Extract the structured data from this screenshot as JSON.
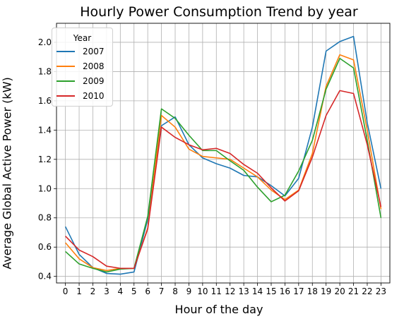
{
  "chart_data": {
    "type": "line",
    "title": "Hourly Power Consumption Trend by year",
    "xlabel": "Hour of the day",
    "ylabel": "Average Global Active Power  (kW)",
    "x": [
      0,
      1,
      2,
      3,
      4,
      5,
      6,
      7,
      8,
      9,
      10,
      11,
      12,
      13,
      14,
      15,
      16,
      17,
      18,
      19,
      20,
      21,
      22,
      23
    ],
    "xticks": [
      "0",
      "1",
      "2",
      "3",
      "4",
      "5",
      "6",
      "7",
      "8",
      "9",
      "10",
      "11",
      "12",
      "13",
      "14",
      "15",
      "16",
      "17",
      "18",
      "19",
      "20",
      "21",
      "22",
      "23"
    ],
    "yticks": [
      "0.4",
      "0.6",
      "0.8",
      "1.0",
      "1.2",
      "1.4",
      "1.6",
      "1.8",
      "2.0"
    ],
    "ytick_values": [
      0.4,
      0.6,
      0.8,
      1.0,
      1.2,
      1.4,
      1.6,
      1.8,
      2.0
    ],
    "xlim": [
      -0.65,
      23.65
    ],
    "ylim": [
      0.355,
      2.13
    ],
    "grid": true,
    "legend": {
      "title": "Year",
      "position": "top-left"
    },
    "series": [
      {
        "name": "2007",
        "color": "#1f77b4",
        "values": [
          0.74,
          0.55,
          0.46,
          0.42,
          0.415,
          0.43,
          0.79,
          1.43,
          1.49,
          1.3,
          1.21,
          1.17,
          1.14,
          1.09,
          1.08,
          1.02,
          0.95,
          1.07,
          1.42,
          1.94,
          2.005,
          2.04,
          1.45,
          1.0
        ]
      },
      {
        "name": "2008",
        "color": "#ff7f0e",
        "values": [
          0.63,
          0.52,
          0.46,
          0.44,
          0.455,
          0.455,
          0.73,
          1.5,
          1.42,
          1.27,
          1.22,
          1.21,
          1.2,
          1.14,
          1.08,
          0.99,
          0.925,
          0.99,
          1.24,
          1.7,
          1.915,
          1.88,
          1.4,
          0.86
        ]
      },
      {
        "name": "2009",
        "color": "#2ca02c",
        "values": [
          0.57,
          0.485,
          0.455,
          0.43,
          0.45,
          0.455,
          0.81,
          1.545,
          1.48,
          1.365,
          1.26,
          1.26,
          1.19,
          1.125,
          1.01,
          0.91,
          0.955,
          1.12,
          1.33,
          1.68,
          1.89,
          1.825,
          1.33,
          0.8
        ]
      },
      {
        "name": "2010",
        "color": "#d62728",
        "values": [
          0.675,
          0.58,
          0.535,
          0.47,
          0.455,
          0.455,
          0.725,
          1.42,
          1.35,
          1.3,
          1.265,
          1.275,
          1.24,
          1.165,
          1.105,
          1.005,
          0.915,
          0.985,
          1.215,
          1.5,
          1.67,
          1.65,
          1.3,
          0.875
        ]
      }
    ]
  }
}
